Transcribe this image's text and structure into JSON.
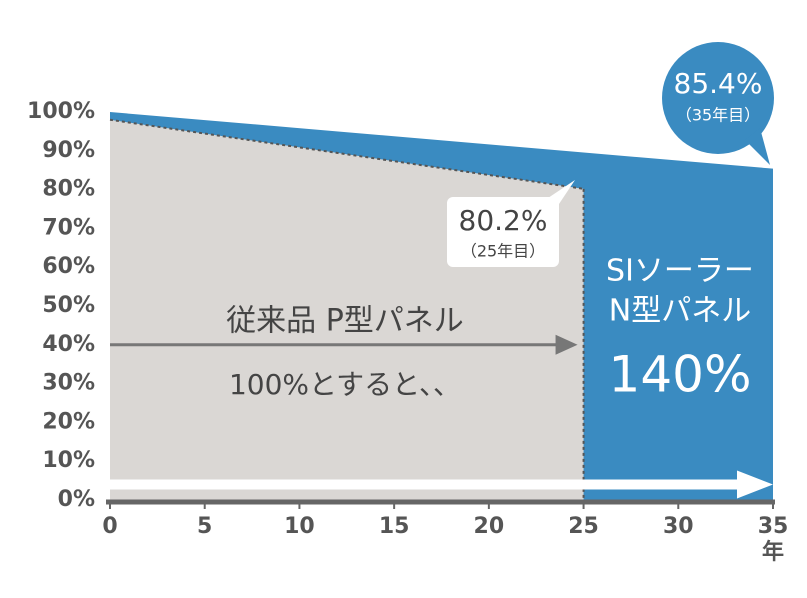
{
  "chart_data": {
    "type": "area",
    "xlim": [
      0,
      35
    ],
    "xticks": [
      0,
      5,
      10,
      15,
      20,
      25,
      30,
      35
    ],
    "x_unit": "年",
    "ylim": [
      0,
      100
    ],
    "yticks": [
      {
        "value": 0,
        "label": "0%"
      },
      {
        "value": 10,
        "label": "10%"
      },
      {
        "value": 20,
        "label": "20%"
      },
      {
        "value": 30,
        "label": "30%"
      },
      {
        "value": 40,
        "label": "40%"
      },
      {
        "value": 50,
        "label": "50%"
      },
      {
        "value": 60,
        "label": "60%"
      },
      {
        "value": 70,
        "label": "70%"
      },
      {
        "value": 80,
        "label": "80%"
      },
      {
        "value": 90,
        "label": "90%"
      },
      {
        "value": 100,
        "label": "100%"
      }
    ],
    "series": [
      {
        "label_lines": [
          "SIソーラー",
          "N型パネル"
        ],
        "color": "#3a8bc1",
        "x": [
          0,
          35
        ],
        "values": [
          100,
          85.4
        ],
        "callout": {
          "label": "85.4%",
          "note": "（35年目）"
        },
        "summary": "140%"
      },
      {
        "name": "従来品 P型パネル",
        "color": "#dad7d4",
        "x": [
          0,
          25
        ],
        "values": [
          98,
          80.2
        ],
        "callout": {
          "label": "80.2%",
          "note": "（25年目）"
        },
        "summary": "100%とすると、、"
      }
    ]
  }
}
